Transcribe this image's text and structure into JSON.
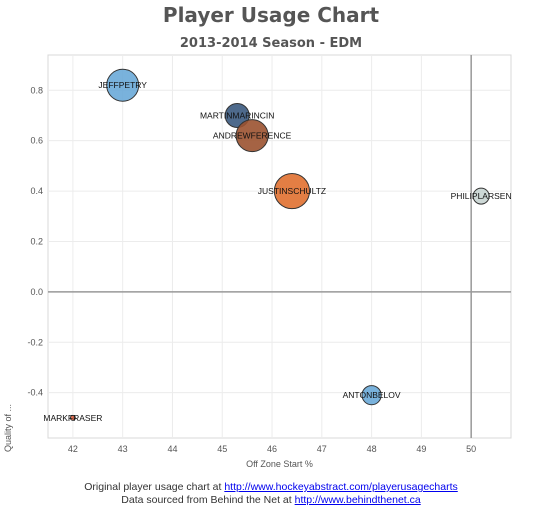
{
  "chart_data": {
    "type": "scatter",
    "title": "Player Usage Chart",
    "subtitle": "2013-2014 Season - EDM",
    "xlabel": "Off Zone Start %",
    "ylabel": "Quality of ...",
    "xlim": [
      41.5,
      50.8
    ],
    "ylim": [
      -0.58,
      0.94
    ],
    "x_ticks": [
      "42",
      "43",
      "44",
      "45",
      "46",
      "47",
      "48",
      "49",
      "50"
    ],
    "y_ticks": [
      "-0.4",
      "-0.2",
      "0.0",
      "0.2",
      "0.4",
      "0.6",
      "0.8"
    ],
    "reference_lines": {
      "x": 50,
      "y": 0
    },
    "points": [
      {
        "name": "JEFFPETRY",
        "x": 43.0,
        "y": 0.82,
        "size": 1.0,
        "color": "#6aaad8"
      },
      {
        "name": "MARTINMARINCIN",
        "x": 45.3,
        "y": 0.7,
        "size": 0.75,
        "color": "#3b5a80"
      },
      {
        "name": "ANDREWFERENCE",
        "x": 45.6,
        "y": 0.62,
        "size": 1.0,
        "color": "#9b5230"
      },
      {
        "name": "JUSTINSCHULTZ",
        "x": 46.4,
        "y": 0.4,
        "size": 1.1,
        "color": "#e07030"
      },
      {
        "name": "PHILIPLARSEN",
        "x": 50.2,
        "y": 0.38,
        "size": 0.5,
        "color": "#c8d4d2"
      },
      {
        "name": "ANTONBELOV",
        "x": 48.0,
        "y": -0.41,
        "size": 0.6,
        "color": "#6aaad8"
      },
      {
        "name": "MARKFRASER",
        "x": 42.0,
        "y": -0.5,
        "size": 0.15,
        "color": "#e06040"
      }
    ]
  },
  "footer": {
    "line1_text": "Original player usage chart at",
    "line1_link": "http://www.hockeyabstract.com/playerusagecharts",
    "line2_text": "Data sourced from Behind the Net at",
    "line2_link": "http://www.behindthenet.ca"
  }
}
